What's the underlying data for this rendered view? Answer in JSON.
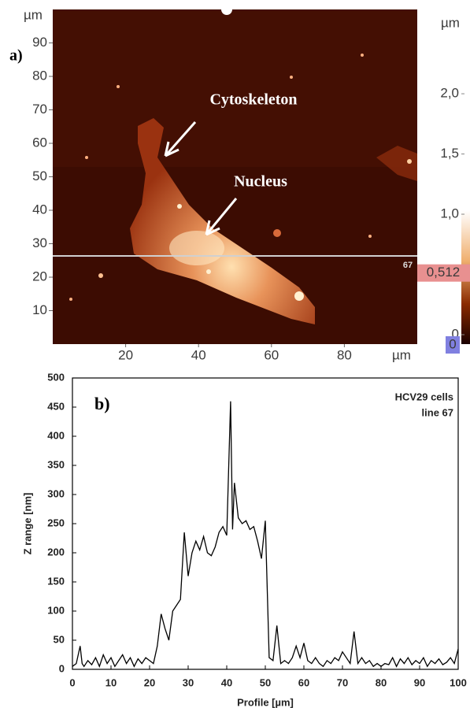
{
  "chart_data": [
    {
      "type": "image",
      "panel_label": "a)",
      "x_unit": "µm",
      "y_unit": "µm",
      "xlim": [
        0,
        100
      ],
      "ylim": [
        0,
        100
      ],
      "xticks": [
        20,
        40,
        60,
        80
      ],
      "yticks": [
        10,
        20,
        30,
        40,
        50,
        60,
        70,
        80,
        90
      ],
      "annotations": [
        "Cytoskeleton",
        "Nucleus"
      ],
      "line_label": "67",
      "colorbar": {
        "unit": "µm",
        "lim": [
          0,
          2.7
        ],
        "ticks": [
          0,
          {
            "value": 1.0,
            "label": "1,0"
          },
          {
            "value": 1.5,
            "label": "1,5"
          },
          {
            "value": 2.0,
            "label": "2,0"
          }
        ],
        "marker": {
          "value": 0.512,
          "label": "0,512"
        },
        "min_label": "0"
      }
    },
    {
      "type": "line",
      "panel_label": "b)",
      "annotation": [
        "HCV29 cells",
        "line 67"
      ],
      "x_label": "Profile [µm]",
      "y_label": "Z range [nm]",
      "xlim": [
        0,
        100
      ],
      "ylim": [
        0,
        500
      ],
      "xticks": [
        0,
        10,
        20,
        30,
        40,
        50,
        60,
        70,
        80,
        90,
        100
      ],
      "yticks": [
        0,
        50,
        100,
        150,
        200,
        250,
        300,
        350,
        400,
        450,
        500
      ],
      "color": "#000000",
      "x": [
        0,
        1,
        2,
        2.5,
        3,
        4,
        5,
        6,
        7,
        8,
        9,
        10,
        11,
        12,
        13,
        14,
        15,
        16,
        17,
        18,
        19,
        20,
        21,
        22,
        23,
        24,
        25,
        26,
        27,
        28,
        29,
        30,
        31,
        32,
        33,
        34,
        35,
        36,
        37,
        38,
        39,
        40,
        41,
        41.5,
        42,
        43,
        44,
        45,
        46,
        47,
        48,
        49,
        50,
        51,
        52,
        53,
        54,
        55,
        56,
        57,
        58,
        59,
        60,
        61,
        62,
        63,
        64,
        65,
        66,
        67,
        68,
        69,
        70,
        71,
        72,
        73,
        74,
        75,
        76,
        77,
        78,
        79,
        80,
        81,
        82,
        83,
        84,
        85,
        86,
        87,
        88,
        89,
        90,
        91,
        92,
        93,
        94,
        95,
        96,
        97,
        98,
        99,
        100
      ],
      "values": [
        5,
        10,
        40,
        10,
        5,
        15,
        8,
        20,
        5,
        25,
        10,
        20,
        5,
        15,
        25,
        10,
        20,
        5,
        18,
        10,
        20,
        15,
        10,
        40,
        95,
        70,
        50,
        100,
        110,
        120,
        235,
        160,
        200,
        220,
        205,
        228,
        200,
        195,
        210,
        235,
        245,
        230,
        460,
        240,
        320,
        260,
        250,
        255,
        240,
        245,
        220,
        190,
        255,
        20,
        15,
        75,
        10,
        15,
        10,
        20,
        40,
        20,
        45,
        15,
        10,
        20,
        10,
        5,
        15,
        10,
        20,
        15,
        30,
        20,
        10,
        65,
        10,
        20,
        10,
        15,
        5,
        10,
        5,
        10,
        8,
        20,
        5,
        18,
        10,
        20,
        8,
        15,
        10,
        20,
        5,
        15,
        10,
        18,
        8,
        12,
        20,
        10,
        35
      ]
    }
  ]
}
